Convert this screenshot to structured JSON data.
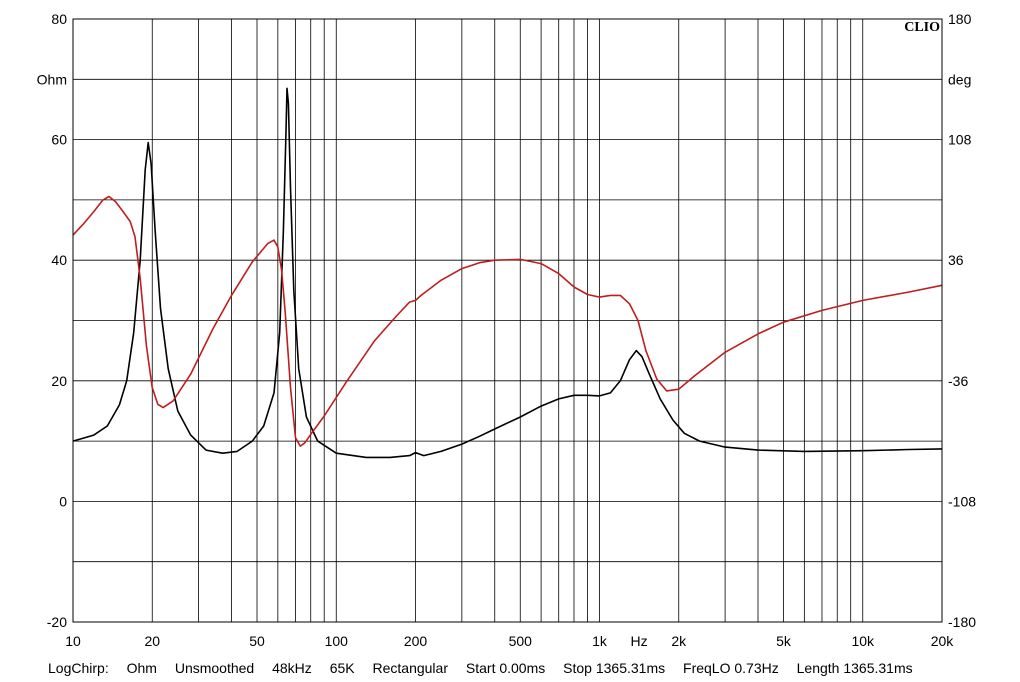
{
  "chart_data": {
    "type": "line",
    "brand": "CLIO",
    "x_scale": "log",
    "xlim": [
      10,
      20000
    ],
    "x_unit_label": "Hz",
    "x_ticks": [
      {
        "value": 10,
        "label": "10"
      },
      {
        "value": 20,
        "label": "20"
      },
      {
        "value": 50,
        "label": "50"
      },
      {
        "value": 100,
        "label": "100"
      },
      {
        "value": 200,
        "label": "200"
      },
      {
        "value": 500,
        "label": "500"
      },
      {
        "value": 1000,
        "label": "1k"
      },
      {
        "value": 2000,
        "label": "2k"
      },
      {
        "value": 5000,
        "label": "5k"
      },
      {
        "value": 10000,
        "label": "10k"
      },
      {
        "value": 20000,
        "label": "20k"
      }
    ],
    "y_left": {
      "unit": "Ohm",
      "ylim": [
        -20,
        80
      ],
      "ticks": [
        "80",
        "60",
        "40",
        "20",
        "0",
        "-20"
      ]
    },
    "y_right": {
      "unit": "deg",
      "ylim": [
        -180,
        180
      ],
      "ticks": [
        "180",
        "108",
        "36",
        "-36",
        "-108",
        "-180"
      ]
    },
    "grid": true,
    "series": [
      {
        "axis": "left",
        "color": "#000000",
        "points": [
          [
            10,
            10
          ],
          [
            12,
            11
          ],
          [
            13.5,
            12.5
          ],
          [
            15,
            16
          ],
          [
            16,
            20
          ],
          [
            17,
            28
          ],
          [
            18,
            40
          ],
          [
            18.8,
            55
          ],
          [
            19.3,
            59.5
          ],
          [
            19.8,
            56
          ],
          [
            20.5,
            45
          ],
          [
            21.5,
            32
          ],
          [
            23,
            22
          ],
          [
            25,
            15
          ],
          [
            28,
            11
          ],
          [
            32,
            8.5
          ],
          [
            37,
            8
          ],
          [
            42,
            8.3
          ],
          [
            48,
            10
          ],
          [
            53,
            12.5
          ],
          [
            58,
            18
          ],
          [
            61,
            28
          ],
          [
            63,
            45
          ],
          [
            64.5,
            62
          ],
          [
            65,
            68.5
          ],
          [
            65.8,
            66
          ],
          [
            67,
            52
          ],
          [
            69,
            35
          ],
          [
            72,
            22
          ],
          [
            77,
            14
          ],
          [
            85,
            10
          ],
          [
            100,
            8
          ],
          [
            130,
            7.3
          ],
          [
            160,
            7.3
          ],
          [
            190,
            7.6
          ],
          [
            200,
            8.1
          ],
          [
            215,
            7.6
          ],
          [
            250,
            8.3
          ],
          [
            300,
            9.5
          ],
          [
            350,
            10.8
          ],
          [
            400,
            12
          ],
          [
            500,
            14
          ],
          [
            600,
            15.8
          ],
          [
            700,
            17
          ],
          [
            800,
            17.6
          ],
          [
            900,
            17.6
          ],
          [
            1000,
            17.5
          ],
          [
            1100,
            18
          ],
          [
            1200,
            20
          ],
          [
            1300,
            23.5
          ],
          [
            1380,
            25
          ],
          [
            1450,
            24
          ],
          [
            1550,
            21
          ],
          [
            1700,
            17
          ],
          [
            1900,
            13.5
          ],
          [
            2100,
            11.3
          ],
          [
            2400,
            10
          ],
          [
            3000,
            9
          ],
          [
            4000,
            8.5
          ],
          [
            6000,
            8.3
          ],
          [
            10000,
            8.4
          ],
          [
            15000,
            8.6
          ],
          [
            20000,
            8.7
          ]
        ]
      },
      {
        "axis": "right",
        "color": "#bf1e1e",
        "points": [
          [
            10,
            51
          ],
          [
            11,
            58
          ],
          [
            12,
            65
          ],
          [
            13,
            72
          ],
          [
            13.7,
            74
          ],
          [
            14.5,
            71
          ],
          [
            15.5,
            65
          ],
          [
            16.5,
            59
          ],
          [
            17.2,
            50
          ],
          [
            18,
            25
          ],
          [
            19,
            -15
          ],
          [
            20,
            -40
          ],
          [
            21,
            -50
          ],
          [
            22,
            -52
          ],
          [
            24,
            -48
          ],
          [
            28,
            -32
          ],
          [
            34,
            -5
          ],
          [
            40,
            15
          ],
          [
            48,
            35
          ],
          [
            55,
            46
          ],
          [
            58,
            48
          ],
          [
            60,
            44
          ],
          [
            62,
            30
          ],
          [
            64,
            5
          ],
          [
            67,
            -40
          ],
          [
            70,
            -70
          ],
          [
            73,
            -75
          ],
          [
            76,
            -73
          ],
          [
            80,
            -68
          ],
          [
            90,
            -57
          ],
          [
            110,
            -36
          ],
          [
            140,
            -12
          ],
          [
            170,
            3
          ],
          [
            190,
            11
          ],
          [
            200,
            12
          ],
          [
            210,
            15
          ],
          [
            250,
            24
          ],
          [
            300,
            31
          ],
          [
            350,
            34.5
          ],
          [
            400,
            36
          ],
          [
            500,
            36.5
          ],
          [
            600,
            34
          ],
          [
            700,
            28
          ],
          [
            800,
            20
          ],
          [
            900,
            15.5
          ],
          [
            1000,
            14
          ],
          [
            1100,
            15
          ],
          [
            1200,
            15
          ],
          [
            1300,
            10
          ],
          [
            1400,
            0
          ],
          [
            1500,
            -18
          ],
          [
            1650,
            -35
          ],
          [
            1800,
            -42
          ],
          [
            2000,
            -41
          ],
          [
            2300,
            -33
          ],
          [
            3000,
            -19
          ],
          [
            4000,
            -8
          ],
          [
            5000,
            -1
          ],
          [
            7000,
            6
          ],
          [
            10000,
            12
          ],
          [
            15000,
            17
          ],
          [
            20000,
            21
          ]
        ]
      }
    ]
  },
  "footer": {
    "items": [
      "LogChirp:",
      "Ohm",
      "Unsmoothed",
      "48kHz",
      "65K",
      "Rectangular",
      "Start 0.00ms",
      "Stop 1365.31ms",
      "FreqLO 0.73Hz",
      "Length 1365.31ms"
    ]
  }
}
